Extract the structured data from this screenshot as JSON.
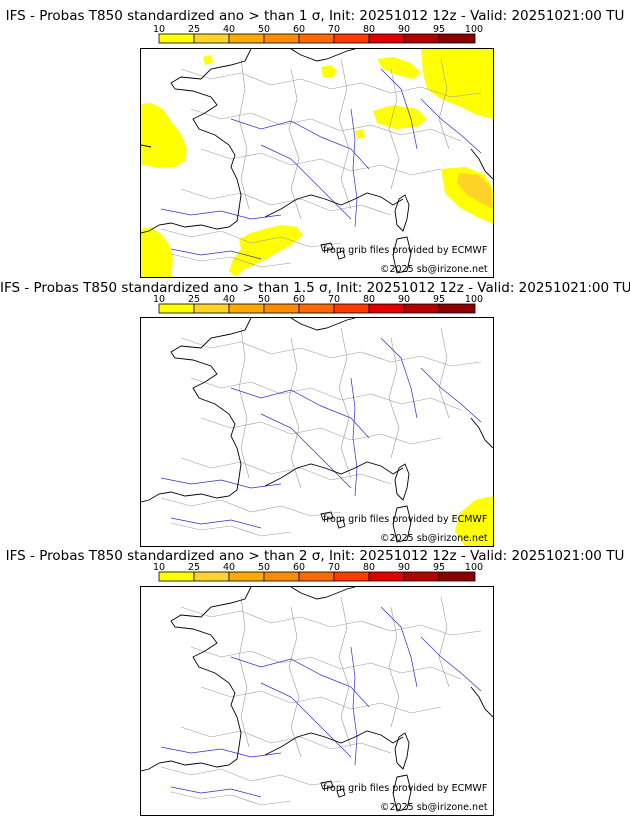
{
  "colors": {
    "scale": [
      "#ffff00",
      "#ffd42a",
      "#ffaa00",
      "#ff8c00",
      "#ff6a00",
      "#ff3c00",
      "#e00000",
      "#b40000",
      "#8c0000",
      "#5a0000"
    ],
    "coast": "#000000",
    "borders": "#9a9a9a",
    "rivers": "#2d2dd2",
    "prob_fill": "#ffff00",
    "prob_fill_mid": "#ffd42a",
    "prob_fill_high": "#ffaa00"
  },
  "legend": {
    "ticks": [
      "10",
      "25",
      "40",
      "50",
      "60",
      "70",
      "80",
      "90",
      "95",
      "100"
    ]
  },
  "panels": [
    {
      "title": "IFS - Probas T850  standardized ano > than 1 σ, Init: 20251012 12z - Valid: 20251021:00 TU",
      "credit_source": "from grib files provided by ECMWF",
      "credit_copyright": "©2025 sb@irizone.net",
      "probability_areas": [
        "Atlantic west of Brittany",
        "Gulf of Lion / Provence",
        "Belgium–Netherlands",
        "Germany / Switzerland",
        "Atlantic off Spain"
      ]
    },
    {
      "title": "IFS - Probas T850  standardized ano > than 1.5 σ, Init: 20251012 12z - Valid: 20251021:00 TU",
      "credit_source": "from grib files provided by ECMWF",
      "credit_copyright": "©2025 sb@irizone.net",
      "probability_areas": [
        "Corsica–Sardinia sea"
      ]
    },
    {
      "title": "IFS - Probas T850  standardized ano > than 2 σ, Init: 20251012 12z - Valid: 20251021:00 TU",
      "credit_source": "from grib files provided by ECMWF",
      "credit_copyright": "©2025 sb@irizone.net",
      "probability_areas": []
    }
  ]
}
